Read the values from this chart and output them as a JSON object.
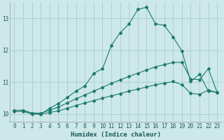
{
  "xlabel": "Humidex (Indice chaleur)",
  "background_color": "#cde8e8",
  "grid_color": "#aacccc",
  "line_color": "#1a7a6e",
  "xlim": [
    -0.5,
    23.5
  ],
  "ylim": [
    9.75,
    13.5
  ],
  "yticks": [
    10,
    11,
    12,
    13
  ],
  "xticks": [
    0,
    1,
    2,
    3,
    4,
    5,
    6,
    7,
    8,
    9,
    10,
    11,
    12,
    13,
    14,
    15,
    16,
    17,
    18,
    19,
    20,
    21,
    22,
    23
  ],
  "series1_x": [
    0,
    1,
    2,
    3,
    4,
    5,
    6,
    7,
    8,
    9,
    10,
    11,
    12,
    13,
    14,
    15,
    16,
    17,
    18,
    19,
    20,
    21,
    22,
    23
  ],
  "series1_y": [
    10.12,
    10.12,
    10.03,
    10.0,
    10.18,
    10.33,
    10.52,
    10.72,
    10.88,
    11.28,
    11.42,
    12.15,
    12.55,
    12.82,
    13.28,
    13.35,
    12.83,
    12.78,
    12.42,
    11.98,
    11.02,
    11.25,
    10.72,
    10.68
  ],
  "series2_x": [
    0,
    1,
    2,
    3,
    4,
    5,
    6,
    7,
    8,
    9,
    10,
    11,
    12,
    13,
    14,
    15,
    16,
    17,
    18,
    19,
    20,
    21,
    22,
    23
  ],
  "series2_y": [
    10.12,
    10.12,
    10.03,
    10.03,
    10.12,
    10.22,
    10.35,
    10.48,
    10.6,
    10.72,
    10.84,
    10.96,
    11.07,
    11.18,
    11.28,
    11.38,
    11.48,
    11.55,
    11.62,
    11.62,
    11.1,
    11.08,
    11.42,
    10.68
  ],
  "series3_x": [
    0,
    1,
    2,
    3,
    4,
    5,
    6,
    7,
    8,
    9,
    10,
    11,
    12,
    13,
    14,
    15,
    16,
    17,
    18,
    19,
    20,
    21,
    22,
    23
  ],
  "series3_y": [
    10.08,
    10.08,
    10.0,
    10.0,
    10.05,
    10.1,
    10.18,
    10.27,
    10.35,
    10.42,
    10.5,
    10.57,
    10.64,
    10.72,
    10.78,
    10.85,
    10.92,
    10.97,
    11.02,
    10.92,
    10.65,
    10.62,
    10.75,
    10.68
  ]
}
